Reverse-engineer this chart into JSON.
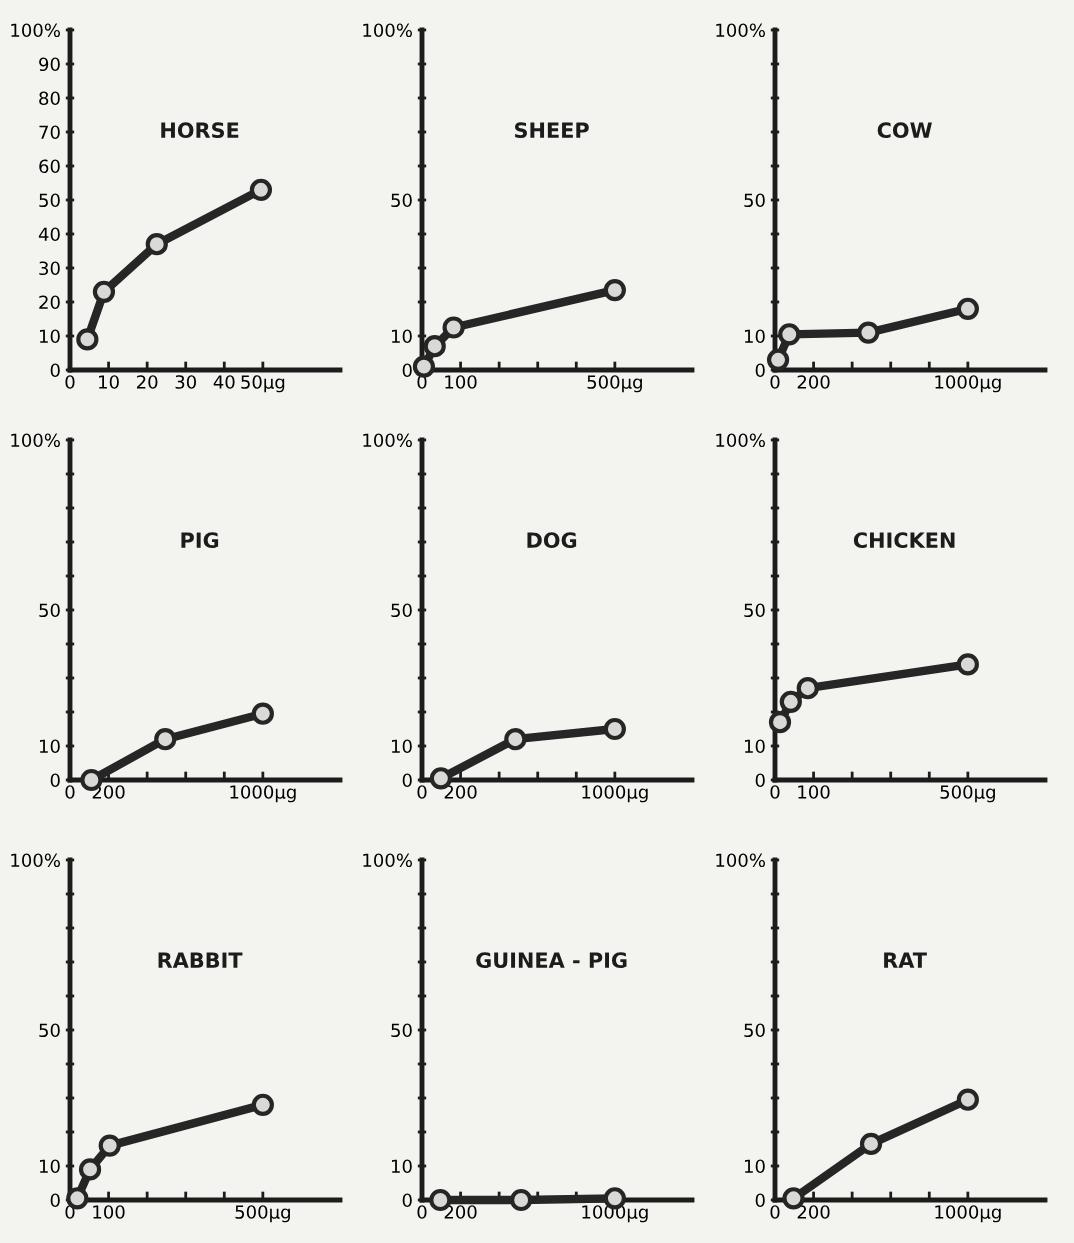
{
  "chart_data": [
    {
      "type": "line",
      "title": "HORSE",
      "marker": "circle",
      "color": "#262626",
      "x": [
        4.5,
        8.8,
        22.5,
        49.5
      ],
      "values": [
        9,
        23,
        37,
        53
      ],
      "xlim": [
        0,
        70
      ],
      "xticks": [
        0,
        10,
        20,
        30,
        40,
        {
          "value": 50,
          "label": "50µg"
        }
      ],
      "ylim": [
        0,
        100
      ],
      "yticks": [
        0,
        10,
        20,
        30,
        40,
        50,
        60,
        70,
        80,
        90,
        {
          "value": 100,
          "label": "100%"
        }
      ]
    },
    {
      "type": "line",
      "title": "SHEEP",
      "marker": "circle",
      "color": "#262626",
      "x": [
        5,
        33,
        82,
        500
      ],
      "values": [
        1,
        7,
        12.5,
        23.5
      ],
      "xlim": [
        0,
        700
      ],
      "xticks": [
        0,
        100,
        {
          "value": 200,
          "label": null
        },
        {
          "value": 300,
          "label": null
        },
        {
          "value": 400,
          "label": null
        },
        {
          "value": 500,
          "label": "500µg"
        }
      ],
      "ylim": [
        0,
        100
      ],
      "yticks": [
        0,
        10,
        {
          "value": 20,
          "label": null
        },
        {
          "value": 30,
          "label": null
        },
        {
          "value": 40,
          "label": null
        },
        50,
        {
          "value": 60,
          "label": null
        },
        {
          "value": 70,
          "label": null
        },
        {
          "value": 80,
          "label": null
        },
        {
          "value": 90,
          "label": null
        },
        {
          "value": 100,
          "label": "100%"
        }
      ]
    },
    {
      "type": "line",
      "title": "COW",
      "marker": "circle",
      "color": "#262626",
      "x": [
        16,
        74,
        484,
        1000
      ],
      "values": [
        3,
        10.5,
        11,
        18
      ],
      "xlim": [
        0,
        1400
      ],
      "xticks": [
        0,
        200,
        {
          "value": 400,
          "label": null
        },
        {
          "value": 600,
          "label": null
        },
        {
          "value": 800,
          "label": null
        },
        {
          "value": 1000,
          "label": "1000µg"
        }
      ],
      "ylim": [
        0,
        100
      ],
      "yticks": [
        0,
        10,
        {
          "value": 20,
          "label": null
        },
        {
          "value": 30,
          "label": null
        },
        {
          "value": 40,
          "label": null
        },
        50,
        {
          "value": 60,
          "label": null
        },
        {
          "value": 70,
          "label": null
        },
        {
          "value": 80,
          "label": null
        },
        {
          "value": 90,
          "label": null
        },
        {
          "value": 100,
          "label": "100%"
        }
      ]
    },
    {
      "type": "line",
      "title": "PIG",
      "marker": "circle",
      "color": "#262626",
      "x": [
        111,
        494,
        1000
      ],
      "values": [
        0,
        12,
        19.5
      ],
      "xlim": [
        0,
        1400
      ],
      "xticks": [
        0,
        200,
        {
          "value": 400,
          "label": null
        },
        {
          "value": 600,
          "label": null
        },
        {
          "value": 800,
          "label": null
        },
        {
          "value": 1000,
          "label": "1000µg"
        }
      ],
      "ylim": [
        0,
        100
      ],
      "yticks": [
        0,
        10,
        {
          "value": 20,
          "label": null
        },
        {
          "value": 30,
          "label": null
        },
        {
          "value": 40,
          "label": null
        },
        50,
        {
          "value": 60,
          "label": null
        },
        {
          "value": 70,
          "label": null
        },
        {
          "value": 80,
          "label": null
        },
        {
          "value": 90,
          "label": null
        },
        {
          "value": 100,
          "label": "100%"
        }
      ]
    },
    {
      "type": "line",
      "title": "DOG",
      "marker": "circle",
      "color": "#262626",
      "x": [
        98,
        484,
        1000
      ],
      "values": [
        0.5,
        12,
        15
      ],
      "xlim": [
        0,
        1400
      ],
      "xticks": [
        0,
        200,
        {
          "value": 400,
          "label": null
        },
        {
          "value": 600,
          "label": null
        },
        {
          "value": 800,
          "label": null
        },
        {
          "value": 1000,
          "label": "1000µg"
        }
      ],
      "ylim": [
        0,
        100
      ],
      "yticks": [
        0,
        10,
        {
          "value": 20,
          "label": null
        },
        {
          "value": 30,
          "label": null
        },
        {
          "value": 40,
          "label": null
        },
        50,
        {
          "value": 60,
          "label": null
        },
        {
          "value": 70,
          "label": null
        },
        {
          "value": 80,
          "label": null
        },
        {
          "value": 90,
          "label": null
        },
        {
          "value": 100,
          "label": "100%"
        }
      ]
    },
    {
      "type": "line",
      "title": "CHICKEN",
      "marker": "circle",
      "color": "#262626",
      "x": [
        13,
        41,
        85,
        500
      ],
      "values": [
        17,
        23,
        27,
        34
      ],
      "xlim": [
        0,
        700
      ],
      "xticks": [
        0,
        100,
        {
          "value": 200,
          "label": null
        },
        {
          "value": 300,
          "label": null
        },
        {
          "value": 400,
          "label": null
        },
        {
          "value": 500,
          "label": "500µg"
        }
      ],
      "ylim": [
        0,
        100
      ],
      "yticks": [
        0,
        10,
        {
          "value": 20,
          "label": null
        },
        {
          "value": 30,
          "label": null
        },
        {
          "value": 40,
          "label": null
        },
        50,
        {
          "value": 60,
          "label": null
        },
        {
          "value": 70,
          "label": null
        },
        {
          "value": 80,
          "label": null
        },
        {
          "value": 90,
          "label": null
        },
        {
          "value": 100,
          "label": "100%"
        }
      ]
    },
    {
      "type": "line",
      "title": "RABBIT",
      "marker": "circle",
      "color": "#262626",
      "x": [
        19,
        52,
        103,
        500
      ],
      "values": [
        0.5,
        9,
        16,
        28
      ],
      "xlim": [
        0,
        700
      ],
      "xticks": [
        0,
        100,
        {
          "value": 200,
          "label": null
        },
        {
          "value": 300,
          "label": null
        },
        {
          "value": 400,
          "label": null
        },
        {
          "value": 500,
          "label": "500µg"
        }
      ],
      "ylim": [
        0,
        100
      ],
      "yticks": [
        0,
        10,
        {
          "value": 20,
          "label": null
        },
        {
          "value": 30,
          "label": null
        },
        {
          "value": 40,
          "label": null
        },
        50,
        {
          "value": 60,
          "label": null
        },
        {
          "value": 70,
          "label": null
        },
        {
          "value": 80,
          "label": null
        },
        {
          "value": 90,
          "label": null
        },
        {
          "value": 100,
          "label": "100%"
        }
      ]
    },
    {
      "type": "line",
      "title": "GUINEA - PIG",
      "marker": "circle",
      "color": "#262626",
      "x": [
        95,
        514,
        1000
      ],
      "values": [
        0,
        0,
        0.5
      ],
      "xlim": [
        0,
        1400
      ],
      "xticks": [
        0,
        200,
        {
          "value": 400,
          "label": null
        },
        {
          "value": 600,
          "label": null
        },
        {
          "value": 800,
          "label": null
        },
        {
          "value": 1000,
          "label": "1000µg"
        }
      ],
      "ylim": [
        0,
        100
      ],
      "yticks": [
        0,
        10,
        {
          "value": 20,
          "label": null
        },
        {
          "value": 30,
          "label": null
        },
        {
          "value": 40,
          "label": null
        },
        50,
        {
          "value": 60,
          "label": null
        },
        {
          "value": 70,
          "label": null
        },
        {
          "value": 80,
          "label": null
        },
        {
          "value": 90,
          "label": null
        },
        {
          "value": 100,
          "label": "100%"
        }
      ]
    },
    {
      "type": "line",
      "title": "RAT",
      "marker": "circle",
      "color": "#262626",
      "x": [
        96,
        498,
        1000
      ],
      "values": [
        0.5,
        16.5,
        29.5
      ],
      "xlim": [
        0,
        1400
      ],
      "xticks": [
        0,
        200,
        {
          "value": 400,
          "label": null
        },
        {
          "value": 600,
          "label": null
        },
        {
          "value": 800,
          "label": null
        },
        {
          "value": 1000,
          "label": "1000µg"
        }
      ],
      "ylim": [
        0,
        100
      ],
      "yticks": [
        0,
        10,
        {
          "value": 20,
          "label": null
        },
        {
          "value": 30,
          "label": null
        },
        {
          "value": 40,
          "label": null
        },
        50,
        {
          "value": 60,
          "label": null
        },
        {
          "value": 70,
          "label": null
        },
        {
          "value": 80,
          "label": null
        },
        {
          "value": 90,
          "label": null
        },
        {
          "value": 100,
          "label": "100%"
        }
      ]
    }
  ]
}
